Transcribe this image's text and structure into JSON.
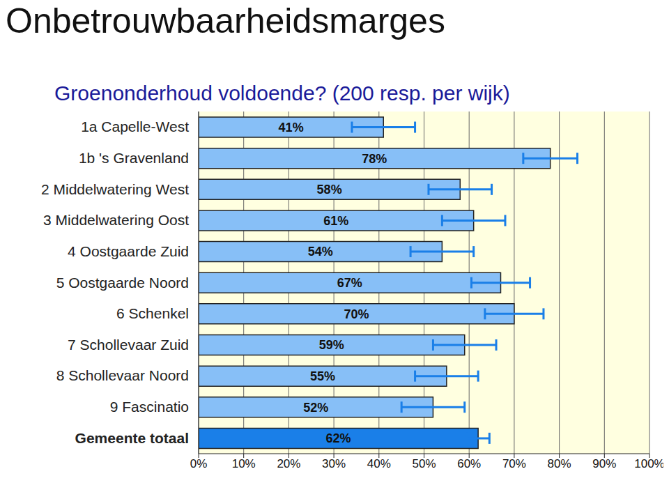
{
  "chart_data": {
    "type": "bar",
    "title": "Onbetrouwbaarheidsmarges",
    "subtitle": "Groenonderhoud voldoende? (200 resp. per wijk)",
    "orientation": "horizontal",
    "categories": [
      "1a Capelle-West",
      "1b 's Gravenland",
      "2 Middelwatering West",
      "3 Middelwatering Oost",
      "4 Oostgaarde Zuid",
      "5 Oostgaarde Noord",
      "6 Schenkel",
      "7 Schollevaar Zuid",
      "8 Schollevaar Noord",
      "9 Fascinatio",
      "Gemeente totaal"
    ],
    "values": [
      41,
      78,
      58,
      61,
      54,
      67,
      70,
      59,
      55,
      52,
      62
    ],
    "value_labels": [
      "41%",
      "78%",
      "58%",
      "61%",
      "54%",
      "67%",
      "70%",
      "59%",
      "55%",
      "52%",
      "62%"
    ],
    "error": [
      7,
      6,
      7,
      7,
      7,
      6.5,
      6.5,
      7,
      7,
      7,
      2.5
    ],
    "colors": [
      "#87bff7",
      "#87bff7",
      "#87bff7",
      "#87bff7",
      "#87bff7",
      "#87bff7",
      "#87bff7",
      "#87bff7",
      "#87bff7",
      "#87bff7",
      "#1a7fe8"
    ],
    "data_labels": true,
    "grid": true,
    "xlim": [
      0,
      100
    ],
    "xticks": [
      {
        "value": 0,
        "label": "0%"
      },
      {
        "value": 10,
        "label": "10%"
      },
      {
        "value": 20,
        "label": "20%"
      },
      {
        "value": 30,
        "label": "30%"
      },
      {
        "value": 40,
        "label": "40%"
      },
      {
        "value": 50,
        "label": "50%"
      },
      {
        "value": 60,
        "label": "60%"
      },
      {
        "value": 70,
        "label": "70%"
      },
      {
        "value": 80,
        "label": "80%"
      },
      {
        "value": 90,
        "label": "90%"
      },
      {
        "value": 100,
        "label": "100%"
      }
    ]
  }
}
